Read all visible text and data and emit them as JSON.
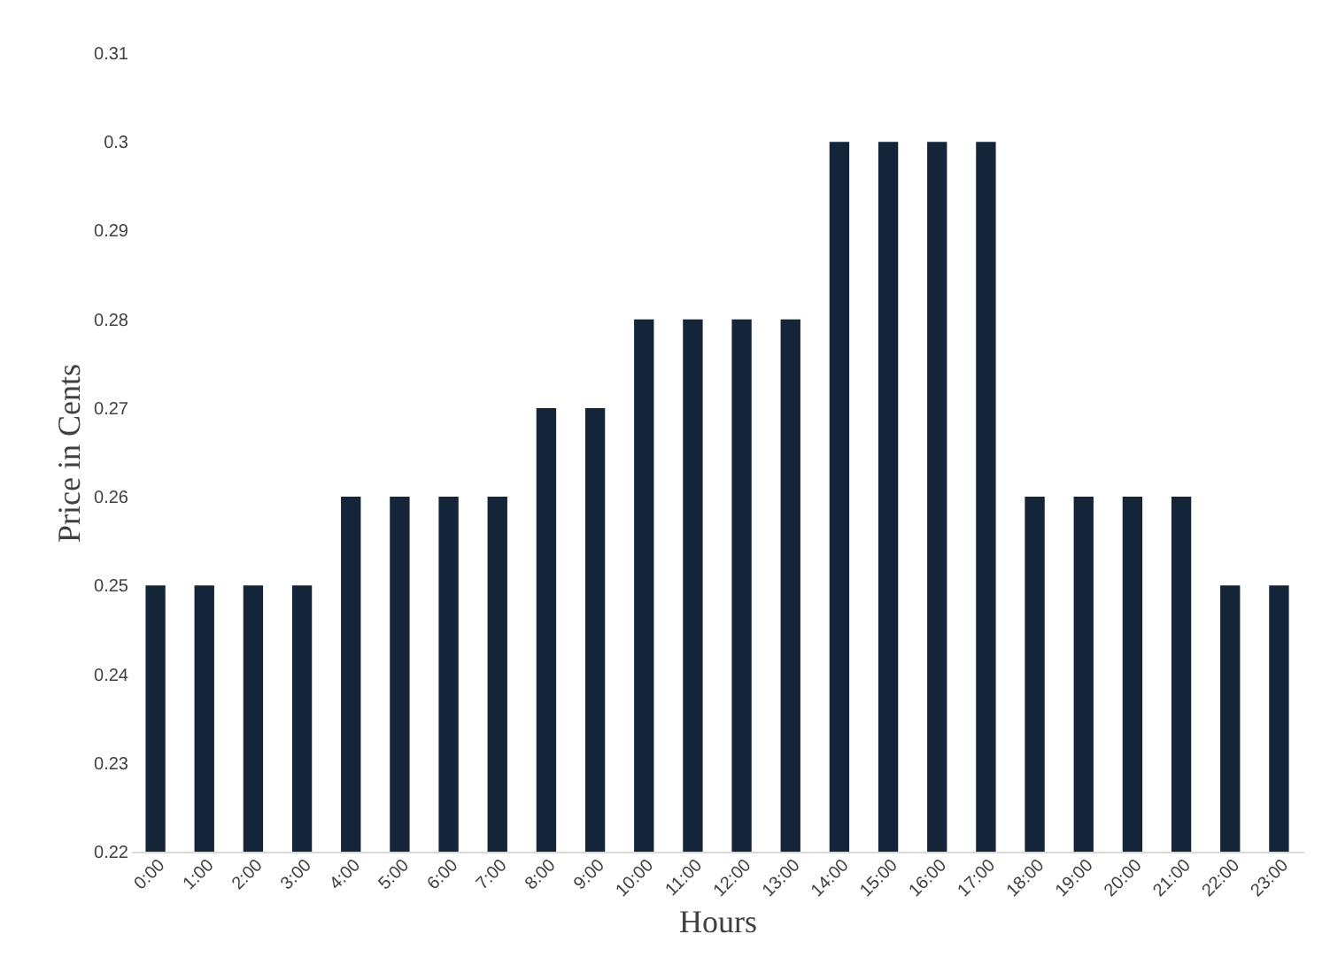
{
  "chart_data": {
    "type": "bar",
    "xlabel": "Hours",
    "ylabel": "Price in Cents",
    "categories": [
      "0:00",
      "1:00",
      "2:00",
      "3:00",
      "4:00",
      "5:00",
      "6:00",
      "7:00",
      "8:00",
      "9:00",
      "10:00",
      "11:00",
      "12:00",
      "13:00",
      "14:00",
      "15:00",
      "16:00",
      "17:00",
      "18:00",
      "19:00",
      "20:00",
      "21:00",
      "22:00",
      "23:00"
    ],
    "values": [
      0.25,
      0.25,
      0.25,
      0.25,
      0.26,
      0.26,
      0.26,
      0.26,
      0.27,
      0.27,
      0.28,
      0.28,
      0.28,
      0.28,
      0.3,
      0.3,
      0.3,
      0.3,
      0.26,
      0.26,
      0.26,
      0.26,
      0.25,
      0.25
    ],
    "color": "#14253a",
    "ylim": [
      0.22,
      0.31
    ],
    "yticks": [
      0.22,
      0.23,
      0.24,
      0.25,
      0.26,
      0.27,
      0.28,
      0.29,
      0.3,
      0.31
    ],
    "grid": false
  }
}
